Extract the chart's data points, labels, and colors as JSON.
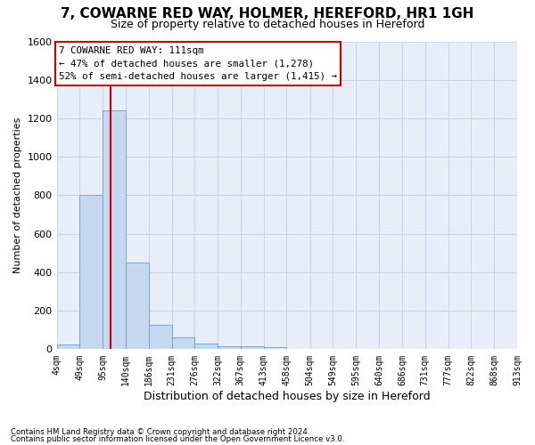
{
  "title": "7, COWARNE RED WAY, HOLMER, HEREFORD, HR1 1GH",
  "subtitle": "Size of property relative to detached houses in Hereford",
  "xlabel": "Distribution of detached houses by size in Hereford",
  "ylabel": "Number of detached properties",
  "footnote1": "Contains HM Land Registry data © Crown copyright and database right 2024.",
  "footnote2": "Contains public sector information licensed under the Open Government Licence v3.0.",
  "bins": [
    4,
    49,
    95,
    140,
    186,
    231,
    276,
    322,
    367,
    413,
    458,
    504,
    549,
    595,
    640,
    686,
    731,
    777,
    822,
    868,
    913
  ],
  "counts": [
    25,
    800,
    1240,
    450,
    125,
    60,
    28,
    18,
    15,
    10,
    0,
    0,
    0,
    0,
    0,
    0,
    0,
    0,
    0,
    0
  ],
  "bar_color": "#c5d8f0",
  "bar_edge_color": "#6aa0d0",
  "grid_color": "#c8d4e8",
  "background_color": "#e8eef8",
  "property_size": 111,
  "red_line_color": "#cc0000",
  "ann_line1": "7 COWARNE RED WAY: 111sqm",
  "ann_line2": "← 47% of detached houses are smaller (1,278)",
  "ann_line3": "52% of semi-detached houses are larger (1,415) →",
  "annotation_box_color": "#cc0000",
  "ylim": [
    0,
    1600
  ],
  "yticks": [
    0,
    200,
    400,
    600,
    800,
    1000,
    1200,
    1400,
    1600
  ],
  "tick_labels": [
    "4sqm",
    "49sqm",
    "95sqm",
    "140sqm",
    "186sqm",
    "231sqm",
    "276sqm",
    "322sqm",
    "367sqm",
    "413sqm",
    "458sqm",
    "504sqm",
    "549sqm",
    "595sqm",
    "640sqm",
    "686sqm",
    "731sqm",
    "777sqm",
    "822sqm",
    "868sqm",
    "913sqm"
  ],
  "title_fontsize": 11,
  "subtitle_fontsize": 9,
  "xlabel_fontsize": 9,
  "ylabel_fontsize": 8
}
